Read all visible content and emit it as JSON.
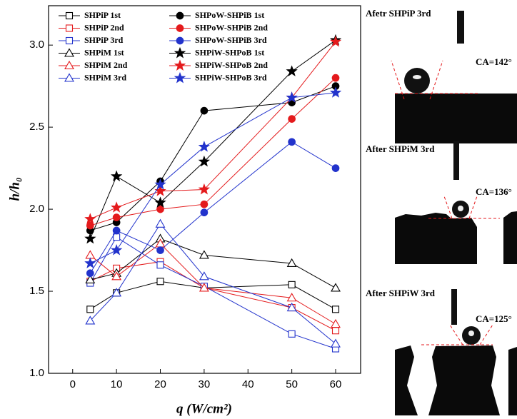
{
  "chart_data": {
    "type": "line",
    "x": [
      4,
      10,
      20,
      30,
      50,
      60
    ],
    "xlabel": "q (W/cm²)",
    "ylabel": "h/h₀",
    "xlim": [
      -5.5,
      65.7
    ],
    "ylim": [
      1.0,
      3.24
    ],
    "xticks": [
      0,
      10,
      20,
      30,
      40,
      50,
      60
    ],
    "yticks": [
      {
        "value": 1.0,
        "label": "1.0"
      },
      1.5,
      {
        "value": 2.0,
        "label": "2.0"
      },
      2.5,
      {
        "value": 3.0,
        "label": "3.0"
      }
    ],
    "series": [
      {
        "name": "SHPiP 1st",
        "color": "#000000",
        "marker": "square",
        "filled": false,
        "values": [
          1.39,
          1.49,
          1.56,
          1.52,
          1.54,
          1.39
        ]
      },
      {
        "name": "SHPiP 2nd",
        "color": "#e41a1c",
        "marker": "square",
        "filled": false,
        "values": [
          1.56,
          1.64,
          1.68,
          1.52,
          1.4,
          1.26
        ]
      },
      {
        "name": "SHPiP 3rd",
        "color": "#2233cc",
        "marker": "square",
        "filled": false,
        "values": [
          1.55,
          1.83,
          1.66,
          1.53,
          1.24,
          1.15
        ]
      },
      {
        "name": "SHPiM 1st",
        "color": "#000000",
        "marker": "triangle",
        "filled": false,
        "values": [
          1.57,
          1.61,
          1.82,
          1.72,
          1.67,
          1.52
        ]
      },
      {
        "name": "SHPiM 2nd",
        "color": "#e41a1c",
        "marker": "triangle",
        "filled": false,
        "values": [
          1.72,
          1.59,
          1.79,
          1.52,
          1.46,
          1.3
        ]
      },
      {
        "name": "SHPiM 3rd",
        "color": "#2233cc",
        "marker": "triangle",
        "filled": false,
        "values": [
          1.32,
          1.49,
          1.91,
          1.59,
          1.4,
          1.18
        ]
      },
      {
        "name": "SHPoW-SHPiB 1st",
        "color": "#000000",
        "marker": "circle",
        "filled": true,
        "values": [
          1.87,
          1.92,
          2.17,
          2.6,
          2.65,
          2.75
        ]
      },
      {
        "name": "SHPoW-SHPiB 2nd",
        "color": "#e41a1c",
        "marker": "circle",
        "filled": true,
        "values": [
          1.9,
          1.95,
          2.0,
          2.03,
          2.55,
          2.8
        ]
      },
      {
        "name": "SHPoW-SHPiB 3rd",
        "color": "#2233cc",
        "marker": "circle",
        "filled": true,
        "values": [
          1.61,
          1.87,
          1.75,
          1.98,
          2.41,
          2.25
        ]
      },
      {
        "name": "SHPiW-SHPoB 1st",
        "color": "#000000",
        "marker": "star",
        "filled": true,
        "values": [
          1.82,
          2.2,
          2.04,
          2.29,
          2.84,
          3.03
        ]
      },
      {
        "name": "SHPiW-SHPoB 2nd",
        "color": "#e41a1c",
        "marker": "star",
        "filled": true,
        "values": [
          1.94,
          2.01,
          2.11,
          2.12,
          2.68,
          3.02
        ]
      },
      {
        "name": "SHPiW-SHPoB 3rd",
        "color": "#2233cc",
        "marker": "star",
        "filled": true,
        "values": [
          1.67,
          1.75,
          2.15,
          2.38,
          2.68,
          2.71
        ]
      }
    ]
  },
  "panels": [
    {
      "label": "Afetr SHPiP 3rd",
      "angle": "CA=142°"
    },
    {
      "label": "After SHPiM 3rd",
      "angle": "CA=136°"
    },
    {
      "label": "After SHPiW 3rd",
      "angle": "CA=125°"
    }
  ]
}
